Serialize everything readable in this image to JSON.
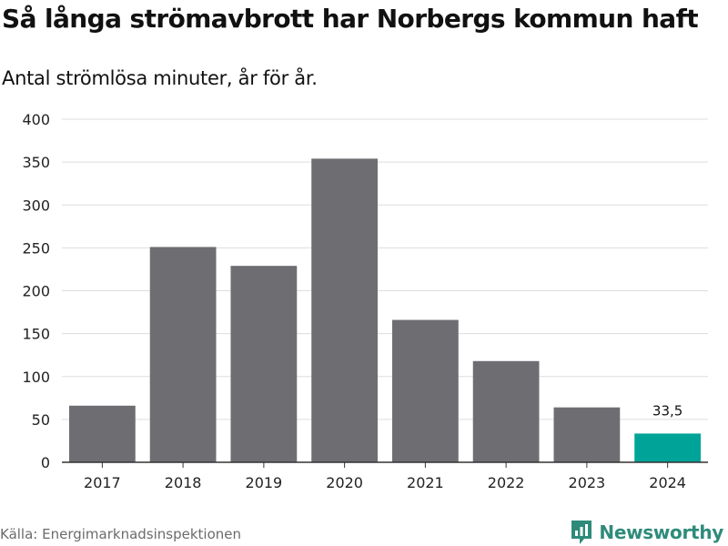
{
  "chart_data": {
    "type": "bar",
    "title": "Så långa strömavbrott har Norbergs kommun haft",
    "subtitle": "Antal strömlösa minuter, år för år.",
    "categories": [
      "2017",
      "2018",
      "2019",
      "2020",
      "2021",
      "2022",
      "2023",
      "2024"
    ],
    "values": [
      66,
      251,
      229,
      354,
      166,
      118,
      64,
      33.5
    ],
    "data_labels": [
      null,
      null,
      null,
      null,
      null,
      null,
      null,
      "33,5"
    ],
    "highlight_index": 7,
    "xlabel": "",
    "ylabel": "",
    "ylim": [
      0,
      400
    ],
    "yticks": [
      0,
      50,
      100,
      150,
      200,
      250,
      300,
      350,
      400
    ],
    "grid": true,
    "colors": {
      "bar": "#6e6d72",
      "highlight": "#00a398",
      "grid": "#dddddd",
      "axis": "#333333"
    }
  },
  "footer": {
    "source": "Källa: Energimarknadsinspektionen",
    "brand": "Newsworthy",
    "brand_color": "#2e8b7a"
  }
}
